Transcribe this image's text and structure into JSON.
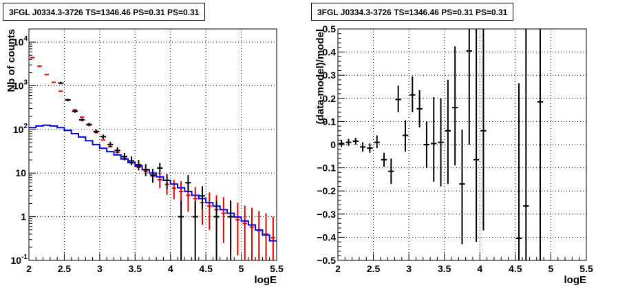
{
  "chart_data": [
    {
      "type": "line",
      "title": "3FGL J0334.3-3726 TS=1346.46 PS=0.31 PS=0.31",
      "xlabel": "logE",
      "ylabel": "Nb of counts",
      "xlim": [
        2,
        5.5
      ],
      "ylim": [
        0.1,
        20000
      ],
      "yscale": "log",
      "grid": true,
      "x_ticks": [
        "2",
        "2.5",
        "3",
        "3.5",
        "4",
        "4.5",
        "5",
        "5.5"
      ],
      "y_ticks": [
        {
          "value": 0.1,
          "label": "10",
          "exp": "-1"
        },
        {
          "value": 1,
          "label": "1",
          "exp": ""
        },
        {
          "value": 10,
          "label": "10",
          "exp": ""
        },
        {
          "value": 100,
          "label": "10",
          "exp": "2"
        },
        {
          "value": 1000,
          "label": "10",
          "exp": "3"
        },
        {
          "value": 10000,
          "label": "10",
          "exp": "4"
        }
      ],
      "bin_width": 0.1,
      "series": [
        {
          "role": "model_total",
          "color": "#e00000",
          "x": [
            2.05,
            2.15,
            2.25,
            2.35,
            2.45,
            2.55,
            2.65,
            2.75,
            2.85,
            2.95,
            3.05,
            3.15,
            3.25,
            3.35,
            3.45,
            3.55,
            3.65,
            3.75,
            3.85,
            3.95,
            4.05,
            4.15,
            4.25,
            4.35,
            4.45,
            4.55,
            4.65,
            4.75,
            4.85,
            4.95,
            5.05,
            5.15,
            5.25,
            5.35,
            5.45
          ],
          "y": [
            4400,
            2800,
            1800,
            1200,
            750,
            480,
            280,
            190,
            125,
            85,
            57,
            40,
            30,
            22,
            17,
            13.5,
            11,
            8.5,
            7,
            5.5,
            4.5,
            3.8,
            3.1,
            2.6,
            2.1,
            1.75,
            1.45,
            1.2,
            1.0,
            0.85,
            0.7,
            0.58,
            0.48,
            0.4,
            0.33
          ],
          "error_low": [
            null,
            null,
            null,
            null,
            null,
            null,
            null,
            null,
            null,
            null,
            null,
            null,
            null,
            null,
            null,
            null,
            null,
            null,
            4.5,
            3.2,
            2.5,
            1.8,
            1.3,
            1.0,
            0.65,
            0.5,
            0.35,
            0.25,
            0.18,
            0.13,
            0.1,
            0.1,
            0.1,
            0.1,
            0.1
          ],
          "error_high": [
            null,
            null,
            null,
            null,
            null,
            null,
            null,
            null,
            null,
            null,
            null,
            null,
            null,
            null,
            null,
            null,
            null,
            null,
            10,
            8.5,
            7,
            6.5,
            5.5,
            4.8,
            4.1,
            3.6,
            3.1,
            2.8,
            2.4,
            2.1,
            1.8,
            1.6,
            1.35,
            1.2,
            1.0
          ]
        },
        {
          "role": "source_model",
          "color": "#0000e0",
          "x": [
            2.0,
            2.1,
            2.2,
            2.3,
            2.4,
            2.5,
            2.6,
            2.7,
            2.8,
            2.9,
            3.0,
            3.1,
            3.2,
            3.3,
            3.4,
            3.5,
            3.6,
            3.7,
            3.8,
            3.9,
            4.0,
            4.1,
            4.2,
            4.3,
            4.4,
            4.5,
            4.6,
            4.7,
            4.8,
            4.9,
            5.0,
            5.1,
            5.2,
            5.3,
            5.4
          ],
          "y": [
            110,
            120,
            125,
            120,
            110,
            95,
            80,
            67,
            55,
            45,
            37,
            31,
            26,
            21,
            17.5,
            14.5,
            12,
            10,
            8.2,
            6.8,
            5.6,
            4.6,
            3.8,
            3.1,
            2.6,
            2.1,
            1.75,
            1.45,
            1.2,
            0.98,
            0.8,
            0.65,
            0.5,
            0.38,
            0.28
          ]
        },
        {
          "role": "data",
          "color": "#000000",
          "x": [
            2.45,
            2.55,
            2.65,
            2.75,
            2.85,
            2.95,
            3.05,
            3.15,
            3.25,
            3.35,
            3.45,
            3.55,
            3.65,
            3.75,
            3.85,
            3.95,
            4.15,
            4.25,
            4.35,
            4.45,
            4.65,
            4.85
          ],
          "y": [
            1150,
            470,
            260,
            165,
            130,
            90,
            68,
            45,
            33,
            24,
            19,
            15.5,
            12,
            9,
            13,
            6.8,
            1,
            6,
            1,
            3,
            1,
            1
          ],
          "error_low": [
            1080,
            440,
            240,
            152,
            118,
            81,
            60,
            39,
            28,
            19.5,
            15,
            11.5,
            8.5,
            6,
            9.5,
            4.2,
            0.1,
            3.6,
            0.1,
            1.5,
            0.1,
            0.1
          ],
          "error_high": [
            1230,
            500,
            280,
            178,
            142,
            100,
            76,
            52,
            39,
            29,
            24,
            20,
            16,
            12.5,
            17,
            9.5,
            2.3,
            9,
            2.3,
            5,
            2.3,
            2.3
          ]
        }
      ]
    },
    {
      "type": "scatter",
      "title": "3FGL J0334.3-3726 TS=1346.46 PS=0.31 PS=0.31",
      "xlabel": "logE",
      "ylabel": "(data-model)/model",
      "xlim": [
        2,
        5.5
      ],
      "ylim": [
        -0.5,
        0.5
      ],
      "grid": true,
      "x_ticks": [
        "2",
        "2.5",
        "3",
        "3.5",
        "4",
        "4.5",
        "5",
        "5.5"
      ],
      "y_ticks": [
        "−0.5",
        "−0.4",
        "−0.3",
        "−0.2",
        "−0.1",
        "0",
        "0.1",
        "0.2",
        "0.3",
        "0.4",
        "0.5"
      ],
      "y_tick_values": [
        -0.5,
        -0.4,
        -0.3,
        -0.2,
        -0.1,
        0,
        0.1,
        0.2,
        0.3,
        0.4,
        0.5
      ],
      "bin_width": 0.1,
      "series": [
        {
          "role": "residuals",
          "color": "#000000",
          "x": [
            2.05,
            2.15,
            2.25,
            2.35,
            2.45,
            2.55,
            2.65,
            2.75,
            2.85,
            2.95,
            3.05,
            3.15,
            3.25,
            3.35,
            3.45,
            3.55,
            3.65,
            3.75,
            3.85,
            3.95,
            4.05,
            4.55,
            4.65,
            4.85
          ],
          "y": [
            0.005,
            0.01,
            0.015,
            -0.01,
            -0.015,
            0.01,
            -0.065,
            -0.115,
            0.195,
            0.04,
            0.215,
            0.155,
            0.0,
            0.005,
            0.01,
            0.06,
            0.16,
            -0.17,
            0.405,
            -0.065,
            0.06,
            -0.405,
            -0.265,
            0.185
          ],
          "error_low": [
            -0.01,
            -0.005,
            0.0,
            -0.03,
            -0.035,
            -0.015,
            -0.095,
            -0.17,
            0.14,
            -0.03,
            0.14,
            0.075,
            -0.1,
            -0.16,
            -0.18,
            -0.17,
            -0.09,
            -0.43,
            0.0,
            -0.42,
            -0.37,
            -0.5,
            -0.5,
            -0.5
          ],
          "error_high": [
            0.02,
            0.025,
            0.03,
            0.01,
            0.005,
            0.04,
            -0.035,
            -0.06,
            0.255,
            0.105,
            0.295,
            0.235,
            0.1,
            0.205,
            0.2,
            0.28,
            0.425,
            0.065,
            0.5,
            0.5,
            0.5,
            0.265,
            0.5,
            0.5
          ]
        }
      ]
    }
  ]
}
